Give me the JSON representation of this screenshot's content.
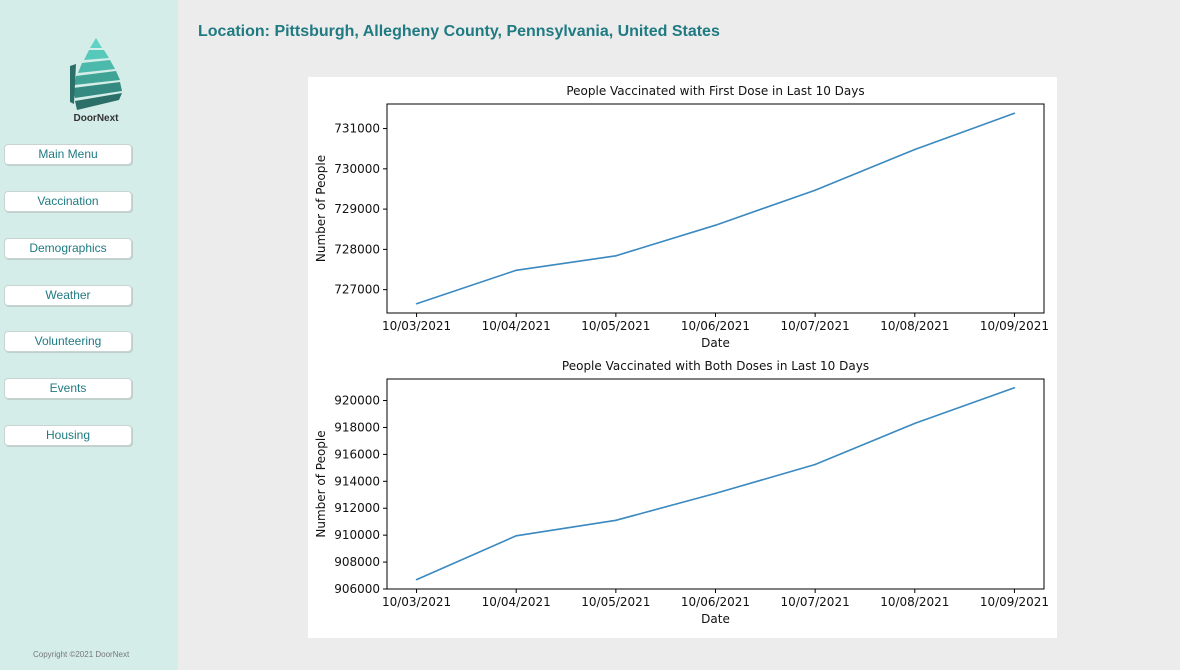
{
  "sidebar": {
    "logo_text": "DoorNext",
    "nav_items": [
      {
        "label": "Main Menu"
      },
      {
        "label": "Vaccination"
      },
      {
        "label": "Demographics"
      },
      {
        "label": "Weather"
      },
      {
        "label": "Volunteering"
      },
      {
        "label": "Events"
      },
      {
        "label": "Housing"
      }
    ],
    "copyright": "Copyright ©2021 DoorNext"
  },
  "header": {
    "location": "Location: Pittsburgh, Allegheny County, Pennsylvania, United States"
  },
  "colors": {
    "sidebar_bg": "#d4ede8",
    "accent": "#1f7a82",
    "line": "#3a89c0"
  },
  "chart_data": [
    {
      "type": "line",
      "title": "People Vaccinated with First Dose in Last 10 Days",
      "xlabel": "Date",
      "ylabel": "Number of People",
      "categories": [
        "10/03/2021",
        "10/04/2021",
        "10/05/2021",
        "10/06/2021",
        "10/07/2021",
        "10/08/2021",
        "10/09/2021"
      ],
      "values": [
        726650,
        727480,
        727840,
        728600,
        729470,
        730480,
        731380
      ],
      "yticks": [
        727000,
        728000,
        729000,
        730000,
        731000
      ],
      "ylim": [
        726420,
        731610
      ]
    },
    {
      "type": "line",
      "title": "People Vaccinated with Both Doses in Last 10 Days",
      "xlabel": "Date",
      "ylabel": "Number of People",
      "categories": [
        "10/03/2021",
        "10/04/2021",
        "10/05/2021",
        "10/06/2021",
        "10/07/2021",
        "10/08/2021",
        "10/09/2021"
      ],
      "values": [
        906700,
        909950,
        911100,
        913100,
        915250,
        918300,
        920950
      ],
      "yticks": [
        906000,
        908000,
        910000,
        912000,
        914000,
        916000,
        918000,
        920000
      ],
      "ylim": [
        906000,
        921600
      ]
    }
  ]
}
